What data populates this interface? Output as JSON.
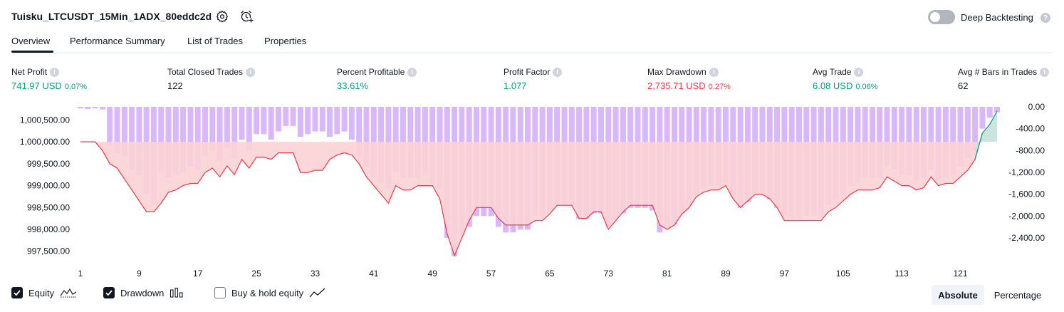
{
  "header": {
    "title": "Tuisku_LTCUSDT_15Min_1ADX_80eddc2d",
    "deep_backtesting_label": "Deep Backtesting",
    "help_glyph": "?"
  },
  "tabs": [
    {
      "label": "Overview"
    },
    {
      "label": "Performance Summary"
    },
    {
      "label": "List of Trades"
    },
    {
      "label": "Properties"
    }
  ],
  "metrics": {
    "net_profit": {
      "label": "Net Profit",
      "value": "741.97 USD",
      "pct": "0.07%"
    },
    "total_closed_trades": {
      "label": "Total Closed Trades",
      "value": "122"
    },
    "percent_profitable": {
      "label": "Percent Profitable",
      "value": "33.61%"
    },
    "profit_factor": {
      "label": "Profit Factor",
      "value": "1.077"
    },
    "max_drawdown": {
      "label": "Max Drawdown",
      "value": "2,735.71 USD",
      "pct": "0.27%"
    },
    "avg_trade": {
      "label": "Avg Trade",
      "value": "6.08 USD",
      "pct": "0.06%"
    },
    "avg_bars": {
      "label": "Avg # Bars in Trades",
      "value": "62"
    }
  },
  "legend": {
    "equity": "Equity",
    "drawdown": "Drawdown",
    "buy_hold": "Buy & hold equity"
  },
  "view_toggle": {
    "absolute": "Absolute",
    "percentage": "Percentage"
  },
  "colors": {
    "positive": "#089981",
    "negative": "#f23645",
    "drawdown_bar": "#d9b7fb",
    "equity_line": "#f23645",
    "equity_fill": "#fbd3d6"
  },
  "chart_data": {
    "type": "bar",
    "left_axis": {
      "name": "equity",
      "ticks": [
        "1,000,500.00",
        "1,000,000.00",
        "999,500.00",
        "999,000.00",
        "998,500.00",
        "998,000.00",
        "997,500.00"
      ],
      "range": [
        997300,
        1000800
      ]
    },
    "right_axis": {
      "name": "drawdown",
      "ticks": [
        "0.00",
        "-400.00",
        "-800.00",
        "-1,200.00",
        "-1,600.00",
        "-2,000.00",
        "-2,400.00"
      ],
      "range": [
        -2740,
        0
      ]
    },
    "x_ticks": [
      "1",
      "9",
      "17",
      "25",
      "33",
      "41",
      "49",
      "57",
      "65",
      "73",
      "81",
      "89",
      "97",
      "105",
      "113",
      "121"
    ],
    "x_range": [
      1,
      123
    ],
    "series": [
      {
        "name": "Equity",
        "type": "line-area",
        "values": [
          1000000,
          1000000,
          1000000,
          999800,
          999500,
          999400,
          999150,
          998900,
          998650,
          998400,
          998400,
          998600,
          998850,
          998900,
          999000,
          999050,
          999050,
          999300,
          999400,
          999200,
          999450,
          999250,
          999600,
          999400,
          999650,
          999650,
          999600,
          999750,
          999750,
          999750,
          999300,
          999300,
          999350,
          999350,
          999600,
          999700,
          999750,
          999700,
          999500,
          999200,
          999000,
          998800,
          998600,
          999000,
          998900,
          998900,
          999000,
          999000,
          999000,
          998700,
          997900,
          997400,
          997800,
          998200,
          998500,
          998500,
          998500,
          998250,
          998100,
          998100,
          998100,
          998100,
          998200,
          998200,
          998350,
          998550,
          998550,
          998550,
          998250,
          998250,
          998400,
          998400,
          998000,
          998200,
          998400,
          998550,
          998550,
          998550,
          998550,
          998100,
          998000,
          998100,
          998350,
          998500,
          998750,
          998850,
          998900,
          998900,
          999000,
          998700,
          998500,
          998650,
          998800,
          998800,
          998700,
          998500,
          998200,
          998200,
          998200,
          998200,
          998200,
          998200,
          998400,
          998500,
          998650,
          998800,
          998900,
          998900,
          998900,
          998950,
          999200,
          999100,
          999000,
          999000,
          998900,
          998950,
          999200,
          999000,
          999050,
          999050,
          999200,
          999350,
          999600,
          1000200,
          1000400,
          1000700
        ]
      },
      {
        "name": "Drawdown",
        "type": "bar",
        "values": [
          -30,
          -40,
          -30,
          -50,
          -700,
          -850,
          -900,
          -1150,
          -1250,
          -1600,
          -1800,
          -1200,
          -1300,
          -1250,
          -1200,
          -1100,
          -1150,
          -900,
          -800,
          -1000,
          -750,
          -950,
          -600,
          -800,
          -500,
          -500,
          -600,
          -450,
          -350,
          -350,
          -550,
          -500,
          -450,
          -450,
          -550,
          -500,
          -450,
          -600,
          -900,
          -1100,
          -1300,
          -1400,
          -1500,
          -1200,
          -1300,
          -1300,
          -1300,
          -1250,
          -1400,
          -1500,
          -2400,
          -2735,
          -2350,
          -2200,
          -2000,
          -2000,
          -2000,
          -2200,
          -2300,
          -2300,
          -2250,
          -2250,
          -2000,
          -2000,
          -1900,
          -1800,
          -1800,
          -1800,
          -2050,
          -2050,
          -1950,
          -1950,
          -2200,
          -2050,
          -1950,
          -1850,
          -1850,
          -1850,
          -1900,
          -2300,
          -2200,
          -2150,
          -1950,
          -1800,
          -1600,
          -1500,
          -1450,
          -1450,
          -1400,
          -1650,
          -1850,
          -1750,
          -1600,
          -1600,
          -1700,
          -1850,
          -2000,
          -2050,
          -2050,
          -2000,
          -2000,
          -2000,
          -1800,
          -1700,
          -1600,
          -1450,
          -1400,
          -1300,
          -1300,
          -1300,
          -1100,
          -1150,
          -1250,
          -1250,
          -1350,
          -1300,
          -1150,
          -1350,
          -1300,
          -1250,
          -1100,
          -950,
          -800,
          -400,
          -200,
          -100
        ]
      }
    ]
  }
}
